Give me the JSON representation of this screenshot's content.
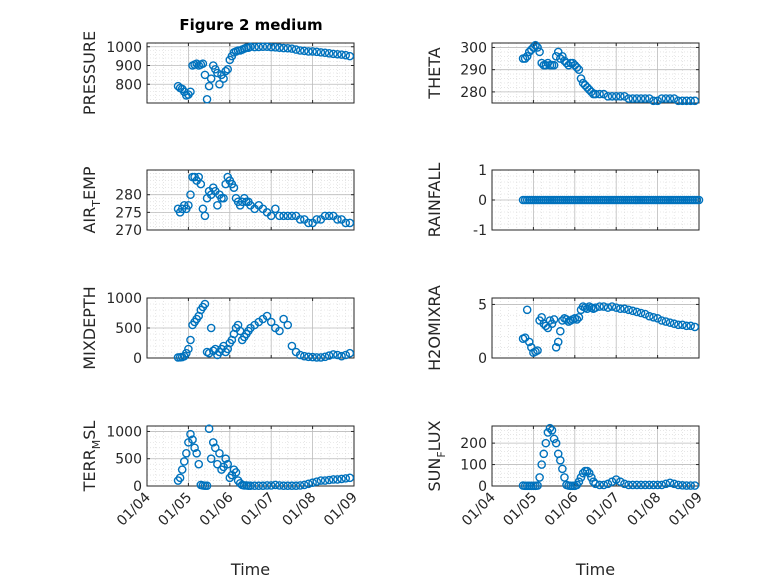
{
  "figure": {
    "title": "Figure 2 medium"
  },
  "colors": {
    "marker": "#0072BD",
    "axis": "#262626",
    "grid": "#bcbcbc"
  },
  "chart_data": [
    {
      "type": "scatter",
      "id": "pressure",
      "ylabel": {
        "main": "PRESSURE"
      },
      "xlim": [
        0,
        5
      ],
      "ylim": [
        700,
        1020
      ],
      "yticks": [
        800,
        900,
        1000
      ],
      "yticklabels": [
        "800",
        "900",
        "1000"
      ],
      "xticks": [
        0,
        1,
        2,
        3,
        4,
        5
      ],
      "xticklabels": [],
      "x": [
        0.75,
        0.8,
        0.85,
        0.9,
        0.95,
        1.0,
        1.05,
        1.1,
        1.15,
        1.2,
        1.25,
        1.3,
        1.35,
        1.4,
        1.45,
        1.5,
        1.55,
        1.6,
        1.65,
        1.7,
        1.75,
        1.8,
        1.85,
        1.9,
        1.95,
        2.0,
        2.05,
        2.1,
        2.15,
        2.2,
        2.25,
        2.3,
        2.35,
        2.4,
        2.45,
        2.5,
        2.6,
        2.7,
        2.8,
        2.9,
        3.0,
        3.1,
        3.2,
        3.3,
        3.4,
        3.5,
        3.6,
        3.7,
        3.8,
        3.9,
        4.0,
        4.1,
        4.2,
        4.3,
        4.4,
        4.5,
        4.6,
        4.7,
        4.8,
        4.9
      ],
      "y": [
        790,
        780,
        775,
        760,
        740,
        745,
        760,
        900,
        905,
        910,
        900,
        905,
        910,
        850,
        720,
        790,
        830,
        900,
        880,
        860,
        800,
        850,
        830,
        870,
        880,
        930,
        950,
        970,
        975,
        980,
        980,
        985,
        990,
        995,
        995,
        1000,
        998,
        999,
        1000,
        1000,
        998,
        997,
        995,
        993,
        992,
        990,
        985,
        980,
        978,
        975,
        975,
        973,
        970,
        968,
        965,
        962,
        960,
        958,
        955,
        950
      ]
    },
    {
      "type": "scatter",
      "id": "theta",
      "ylabel": {
        "main": "THETA"
      },
      "xlim": [
        0,
        5
      ],
      "ylim": [
        275,
        302
      ],
      "yticks": [
        280,
        290,
        300
      ],
      "yticklabels": [
        "280",
        "290",
        "300"
      ],
      "xticks": [
        0,
        1,
        2,
        3,
        4,
        5
      ],
      "xticklabels": [],
      "x": [
        0.75,
        0.8,
        0.85,
        0.9,
        0.95,
        1.0,
        1.05,
        1.1,
        1.15,
        1.2,
        1.25,
        1.3,
        1.35,
        1.4,
        1.45,
        1.5,
        1.55,
        1.6,
        1.65,
        1.7,
        1.75,
        1.8,
        1.85,
        1.9,
        1.95,
        2.0,
        2.05,
        2.1,
        2.15,
        2.2,
        2.25,
        2.3,
        2.35,
        2.4,
        2.45,
        2.5,
        2.6,
        2.7,
        2.8,
        2.9,
        3.0,
        3.1,
        3.2,
        3.3,
        3.4,
        3.5,
        3.6,
        3.7,
        3.8,
        3.9,
        4.0,
        4.1,
        4.2,
        4.3,
        4.4,
        4.5,
        4.6,
        4.7,
        4.8,
        4.9
      ],
      "y": [
        295,
        295,
        296,
        298,
        299,
        300,
        301,
        300,
        298,
        293,
        292,
        292,
        293,
        292,
        292,
        292,
        296,
        298,
        295,
        296,
        294,
        293,
        292,
        293,
        293,
        292,
        291,
        290,
        286,
        284,
        283,
        282,
        281,
        280,
        279,
        279,
        279,
        279,
        278,
        278,
        278,
        278,
        278,
        277,
        277,
        277,
        277,
        277,
        277,
        276,
        276,
        277,
        277,
        277,
        277,
        276,
        276,
        276,
        276,
        276
      ]
    },
    {
      "type": "scatter",
      "id": "air-temp",
      "ylabel": {
        "main": "AIR",
        "sub": "T",
        "rest": "EMP"
      },
      "xlim": [
        0,
        5
      ],
      "ylim": [
        270,
        287
      ],
      "yticks": [
        270,
        275,
        280
      ],
      "yticklabels": [
        "270",
        "275",
        "280"
      ],
      "xticks": [
        0,
        1,
        2,
        3,
        4,
        5
      ],
      "xticklabels": [],
      "x": [
        0.75,
        0.8,
        0.85,
        0.9,
        0.95,
        1.0,
        1.05,
        1.1,
        1.15,
        1.2,
        1.25,
        1.3,
        1.35,
        1.4,
        1.45,
        1.5,
        1.55,
        1.6,
        1.65,
        1.7,
        1.75,
        1.8,
        1.85,
        1.9,
        1.95,
        2.0,
        2.05,
        2.1,
        2.15,
        2.2,
        2.25,
        2.3,
        2.35,
        2.4,
        2.45,
        2.5,
        2.6,
        2.7,
        2.8,
        2.9,
        3.0,
        3.1,
        3.2,
        3.3,
        3.4,
        3.5,
        3.6,
        3.7,
        3.8,
        3.9,
        4.0,
        4.1,
        4.2,
        4.3,
        4.4,
        4.5,
        4.6,
        4.7,
        4.8,
        4.9
      ],
      "y": [
        276,
        275,
        276,
        277,
        276,
        277,
        280,
        285,
        285,
        284,
        285,
        283,
        276,
        274,
        279,
        281,
        280,
        282,
        281,
        277,
        280,
        279,
        279,
        283,
        285,
        284,
        283,
        282,
        279,
        278,
        277,
        278,
        279,
        278,
        278,
        277,
        276,
        277,
        276,
        275,
        274,
        276,
        274,
        274,
        274,
        274,
        274,
        273,
        273,
        272,
        272,
        273,
        273,
        274,
        274,
        274,
        273,
        273,
        272,
        272
      ]
    },
    {
      "type": "scatter",
      "id": "rainfall",
      "ylabel": {
        "main": "RAINFALL"
      },
      "xlim": [
        0,
        5
      ],
      "ylim": [
        -1,
        1
      ],
      "yticks": [
        -1,
        0,
        1
      ],
      "yticklabels": [
        "-1",
        "0",
        "1"
      ],
      "xticks": [
        0,
        1,
        2,
        3,
        4,
        5
      ],
      "xticklabels": [],
      "x": [
        0.75,
        0.8,
        0.85,
        0.9,
        0.95,
        1.0,
        1.05,
        1.1,
        1.15,
        1.2,
        1.25,
        1.3,
        1.35,
        1.4,
        1.45,
        1.5,
        1.55,
        1.6,
        1.65,
        1.7,
        1.75,
        1.8,
        1.85,
        1.9,
        1.95,
        2.0,
        2.05,
        2.1,
        2.15,
        2.2,
        2.25,
        2.3,
        2.35,
        2.4,
        2.45,
        2.5,
        2.55,
        2.6,
        2.65,
        2.7,
        2.75,
        2.8,
        2.85,
        2.9,
        2.95,
        3.0,
        3.05,
        3.1,
        3.15,
        3.2,
        3.25,
        3.3,
        3.35,
        3.4,
        3.45,
        3.5,
        3.55,
        3.6,
        3.65,
        3.7,
        3.75,
        3.8,
        3.85,
        3.9,
        3.95,
        4.0,
        4.05,
        4.1,
        4.15,
        4.2,
        4.25,
        4.3,
        4.35,
        4.4,
        4.45,
        4.5,
        4.55,
        4.6,
        4.65,
        4.7,
        4.75,
        4.8,
        4.85,
        4.9,
        4.95,
        5.0
      ],
      "y": [
        0,
        0,
        0,
        0,
        0,
        0,
        0,
        0,
        0,
        0,
        0,
        0,
        0,
        0,
        0,
        0,
        0,
        0,
        0,
        0,
        0,
        0,
        0,
        0,
        0,
        0,
        0,
        0,
        0,
        0,
        0,
        0,
        0,
        0,
        0,
        0,
        0,
        0,
        0,
        0,
        0,
        0,
        0,
        0,
        0,
        0,
        0,
        0,
        0,
        0,
        0,
        0,
        0,
        0,
        0,
        0,
        0,
        0,
        0,
        0,
        0,
        0,
        0,
        0,
        0,
        0,
        0,
        0,
        0,
        0,
        0,
        0,
        0,
        0,
        0,
        0,
        0,
        0,
        0,
        0,
        0,
        0,
        0,
        0,
        0,
        0
      ]
    },
    {
      "type": "scatter",
      "id": "mixdepth",
      "ylabel": {
        "main": "MIXDEPTH"
      },
      "xlim": [
        0,
        5
      ],
      "ylim": [
        0,
        1000
      ],
      "yticks": [
        0,
        500,
        1000
      ],
      "yticklabels": [
        "0",
        "500",
        "1000"
      ],
      "xticks": [
        0,
        1,
        2,
        3,
        4,
        5
      ],
      "xticklabels": [],
      "x": [
        0.75,
        0.8,
        0.85,
        0.9,
        0.95,
        1.0,
        1.05,
        1.1,
        1.15,
        1.2,
        1.25,
        1.3,
        1.35,
        1.4,
        1.45,
        1.5,
        1.55,
        1.6,
        1.65,
        1.7,
        1.75,
        1.8,
        1.85,
        1.9,
        1.95,
        2.0,
        2.05,
        2.1,
        2.15,
        2.2,
        2.25,
        2.3,
        2.35,
        2.4,
        2.45,
        2.5,
        2.6,
        2.7,
        2.8,
        2.9,
        3.0,
        3.1,
        3.2,
        3.3,
        3.4,
        3.5,
        3.6,
        3.7,
        3.8,
        3.9,
        4.0,
        4.1,
        4.2,
        4.3,
        4.4,
        4.5,
        4.6,
        4.7,
        4.8,
        4.9
      ],
      "y": [
        10,
        12,
        15,
        30,
        80,
        150,
        300,
        550,
        600,
        650,
        700,
        800,
        850,
        900,
        100,
        80,
        500,
        120,
        150,
        50,
        100,
        150,
        200,
        100,
        150,
        250,
        300,
        400,
        500,
        550,
        450,
        300,
        350,
        400,
        450,
        500,
        550,
        600,
        650,
        700,
        600,
        500,
        450,
        650,
        550,
        200,
        100,
        50,
        30,
        20,
        15,
        10,
        10,
        20,
        40,
        60,
        50,
        30,
        50,
        80
      ]
    },
    {
      "type": "scatter",
      "id": "h2omixra",
      "ylabel": {
        "main": "H2OMIXRA"
      },
      "xlim": [
        0,
        5
      ],
      "ylim": [
        0,
        5.6
      ],
      "yticks": [
        0,
        5
      ],
      "yticklabels": [
        "0",
        "5"
      ],
      "xticks": [
        0,
        1,
        2,
        3,
        4,
        5
      ],
      "xticklabels": [],
      "x": [
        0.75,
        0.8,
        0.85,
        0.9,
        0.95,
        1.0,
        1.05,
        1.1,
        1.15,
        1.2,
        1.25,
        1.3,
        1.35,
        1.4,
        1.45,
        1.5,
        1.55,
        1.6,
        1.65,
        1.7,
        1.75,
        1.8,
        1.85,
        1.9,
        1.95,
        2.0,
        2.05,
        2.1,
        2.15,
        2.2,
        2.25,
        2.3,
        2.35,
        2.4,
        2.45,
        2.5,
        2.6,
        2.7,
        2.8,
        2.9,
        3.0,
        3.1,
        3.2,
        3.3,
        3.4,
        3.5,
        3.6,
        3.7,
        3.8,
        3.9,
        4.0,
        4.1,
        4.2,
        4.3,
        4.4,
        4.5,
        4.6,
        4.7,
        4.8,
        4.9
      ],
      "y": [
        1.8,
        1.9,
        4.5,
        1.5,
        1.0,
        0.5,
        0.6,
        0.7,
        3.5,
        3.8,
        3.2,
        3.0,
        2.8,
        3.5,
        3.2,
        3.6,
        1.0,
        1.5,
        2.5,
        3.5,
        3.7,
        3.6,
        3.4,
        3.5,
        3.6,
        3.7,
        3.6,
        3.8,
        4.5,
        4.8,
        4.7,
        4.6,
        4.8,
        4.7,
        4.6,
        4.7,
        4.8,
        4.8,
        4.7,
        4.8,
        4.7,
        4.6,
        4.6,
        4.5,
        4.4,
        4.3,
        4.2,
        4.1,
        3.9,
        3.8,
        3.7,
        3.5,
        3.4,
        3.3,
        3.2,
        3.1,
        3.1,
        3.0,
        3.0,
        2.9
      ]
    },
    {
      "type": "scatter",
      "id": "terr-msl",
      "ylabel": {
        "main": "TERR",
        "sub": "M",
        "rest": "SL"
      },
      "xlim": [
        0,
        5
      ],
      "ylim": [
        0,
        1100
      ],
      "yticks": [
        0,
        500,
        1000
      ],
      "yticklabels": [
        "0",
        "500",
        "1000"
      ],
      "xticks": [
        0,
        1,
        2,
        3,
        4,
        5
      ],
      "xticklabels": [
        "01/04",
        "01/05",
        "01/06",
        "01/07",
        "01/08",
        "01/09"
      ],
      "xlabel": "Time",
      "x": [
        0.75,
        0.8,
        0.85,
        0.9,
        0.95,
        1.0,
        1.05,
        1.1,
        1.15,
        1.2,
        1.25,
        1.3,
        1.35,
        1.4,
        1.45,
        1.5,
        1.55,
        1.6,
        1.65,
        1.7,
        1.75,
        1.8,
        1.85,
        1.9,
        1.95,
        2.0,
        2.05,
        2.1,
        2.15,
        2.2,
        2.25,
        2.3,
        2.35,
        2.4,
        2.45,
        2.5,
        2.6,
        2.7,
        2.8,
        2.9,
        3.0,
        3.1,
        3.2,
        3.3,
        3.4,
        3.5,
        3.6,
        3.7,
        3.8,
        3.9,
        4.0,
        4.1,
        4.2,
        4.3,
        4.4,
        4.5,
        4.6,
        4.7,
        4.8,
        4.9
      ],
      "y": [
        100,
        150,
        300,
        450,
        600,
        800,
        950,
        850,
        700,
        600,
        400,
        20,
        10,
        5,
        5,
        1050,
        500,
        800,
        700,
        400,
        600,
        300,
        350,
        500,
        400,
        150,
        200,
        300,
        250,
        100,
        50,
        20,
        10,
        10,
        5,
        5,
        5,
        5,
        5,
        10,
        10,
        20,
        10,
        5,
        5,
        5,
        5,
        10,
        20,
        40,
        60,
        80,
        100,
        100,
        110,
        120,
        120,
        130,
        140,
        150
      ]
    },
    {
      "type": "scatter",
      "id": "sun-flux",
      "ylabel": {
        "main": "SUN",
        "sub": "F",
        "rest": "LUX"
      },
      "xlim": [
        0,
        5
      ],
      "ylim": [
        0,
        280
      ],
      "yticks": [
        0,
        100,
        200
      ],
      "yticklabels": [
        "0",
        "100",
        "200"
      ],
      "xticks": [
        0,
        1,
        2,
        3,
        4,
        5
      ],
      "xticklabels": [
        "01/04",
        "01/05",
        "01/06",
        "01/07",
        "01/08",
        "01/09"
      ],
      "xlabel": "Time",
      "x": [
        0.75,
        0.8,
        0.85,
        0.9,
        0.95,
        1.0,
        1.05,
        1.1,
        1.15,
        1.2,
        1.25,
        1.3,
        1.35,
        1.4,
        1.45,
        1.5,
        1.55,
        1.6,
        1.65,
        1.7,
        1.75,
        1.8,
        1.85,
        1.9,
        1.95,
        2.0,
        2.05,
        2.1,
        2.15,
        2.2,
        2.25,
        2.3,
        2.35,
        2.4,
        2.45,
        2.5,
        2.6,
        2.7,
        2.8,
        2.9,
        3.0,
        3.1,
        3.2,
        3.3,
        3.4,
        3.5,
        3.6,
        3.7,
        3.8,
        3.9,
        4.0,
        4.1,
        4.2,
        4.3,
        4.4,
        4.5,
        4.6,
        4.7,
        4.8,
        4.9
      ],
      "y": [
        2,
        1,
        1,
        1,
        1,
        1,
        1,
        2,
        40,
        100,
        150,
        200,
        250,
        270,
        260,
        220,
        200,
        150,
        120,
        80,
        40,
        5,
        2,
        1,
        1,
        1,
        5,
        20,
        40,
        60,
        70,
        70,
        60,
        40,
        20,
        10,
        5,
        5,
        10,
        20,
        30,
        20,
        10,
        5,
        5,
        5,
        5,
        5,
        5,
        5,
        5,
        5,
        10,
        15,
        10,
        5,
        3,
        2,
        2,
        2
      ]
    }
  ]
}
